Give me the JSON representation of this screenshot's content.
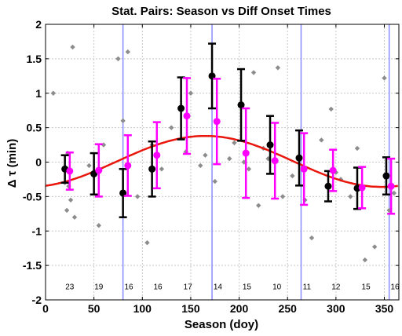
{
  "chart_data": {
    "type": "scatter",
    "title": "Stat. Pairs: Season vs Diff Onset Times",
    "xlabel": "Season (doy)",
    "ylabel": "Δ τ (min)",
    "xlim": [
      0,
      365
    ],
    "ylim": [
      -2,
      2
    ],
    "xticks": [
      0,
      50,
      100,
      150,
      200,
      250,
      300,
      350
    ],
    "yticks": [
      -2,
      -1.5,
      -1,
      -0.5,
      0,
      0.5,
      1,
      1.5,
      2
    ],
    "grid": true,
    "colors": {
      "black_series": "#000000",
      "magenta_series": "#ff00ff",
      "fit_curve": "#e8160c",
      "scatter_points": "#8c8c8c",
      "boundary_lines": "#8a8aff",
      "grid": "#c8c8c8"
    },
    "boundary_lines_x": [
      80,
      172,
      264,
      355
    ],
    "scatter_points": [
      [
        8,
        1.0
      ],
      [
        20,
        -0.3
      ],
      [
        22,
        -0.7
      ],
      [
        23,
        0.13
      ],
      [
        24,
        -0.35
      ],
      [
        26,
        -0.55
      ],
      [
        28,
        1.67
      ],
      [
        30,
        -0.8
      ],
      [
        45,
        -0.05
      ],
      [
        50,
        -0.15
      ],
      [
        55,
        -0.92
      ],
      [
        60,
        0.25
      ],
      [
        75,
        1.5
      ],
      [
        80,
        0.6
      ],
      [
        85,
        1.6
      ],
      [
        95,
        -0.5
      ],
      [
        105,
        -1.17
      ],
      [
        110,
        0.25
      ],
      [
        120,
        -0.1
      ],
      [
        130,
        0.5
      ],
      [
        145,
        0.15
      ],
      [
        150,
        1.0
      ],
      [
        160,
        -0.05
      ],
      [
        165,
        0.1
      ],
      [
        175,
        -0.28
      ],
      [
        190,
        0.05
      ],
      [
        195,
        0.28
      ],
      [
        205,
        0.0
      ],
      [
        210,
        -0.1
      ],
      [
        215,
        1.3
      ],
      [
        220,
        -0.63
      ],
      [
        225,
        0.2
      ],
      [
        230,
        0.05
      ],
      [
        240,
        1.37
      ],
      [
        245,
        -0.5
      ],
      [
        255,
        -0.2
      ],
      [
        268,
        -0.55
      ],
      [
        275,
        -1.1
      ],
      [
        285,
        0.32
      ],
      [
        295,
        0.77
      ],
      [
        300,
        -0.15
      ],
      [
        305,
        -0.25
      ],
      [
        315,
        -0.5
      ],
      [
        322,
        0.2
      ],
      [
        330,
        -1.42
      ],
      [
        340,
        -1.23
      ],
      [
        350,
        1.22
      ],
      [
        355,
        -0.7
      ],
      [
        360,
        -0.45
      ]
    ],
    "series": [
      {
        "marker": "black-dot",
        "x": [
          20,
          50,
          80,
          110,
          140,
          172,
          202,
          232,
          262,
          292,
          322,
          352
        ],
        "y": [
          -0.1,
          -0.17,
          -0.45,
          -0.1,
          0.78,
          1.25,
          0.83,
          0.25,
          0.06,
          -0.35,
          -0.38,
          -0.2
        ],
        "err": [
          0.2,
          0.3,
          0.35,
          0.4,
          0.45,
          0.47,
          0.52,
          0.42,
          0.4,
          0.22,
          0.3,
          0.27
        ]
      },
      {
        "marker": "magenta-dot",
        "x": [
          25,
          55,
          85,
          115,
          146,
          177,
          207,
          237,
          267,
          297,
          327,
          357
        ],
        "y": [
          -0.13,
          -0.12,
          -0.05,
          0.1,
          0.67,
          0.59,
          0.13,
          0.02,
          -0.1,
          -0.12,
          -0.37,
          -0.35
        ],
        "err": [
          0.27,
          0.38,
          0.44,
          0.48,
          0.55,
          0.62,
          0.65,
          0.55,
          0.52,
          0.3,
          0.3,
          0.4
        ]
      }
    ],
    "fit_curve": {
      "mean": 0.01,
      "amplitude": 0.37,
      "peak_doy": 165
    },
    "count_labels": [
      {
        "x": 25,
        "text": "23"
      },
      {
        "x": 55,
        "text": "19"
      },
      {
        "x": 86,
        "text": "16"
      },
      {
        "x": 116,
        "text": "16"
      },
      {
        "x": 147,
        "text": "17"
      },
      {
        "x": 178,
        "text": "14"
      },
      {
        "x": 208,
        "text": "15"
      },
      {
        "x": 239,
        "text": "10"
      },
      {
        "x": 270,
        "text": "11"
      },
      {
        "x": 300,
        "text": "12"
      },
      {
        "x": 331,
        "text": "15"
      },
      {
        "x": 361,
        "text": "16"
      }
    ],
    "count_label_y": -1.8
  }
}
